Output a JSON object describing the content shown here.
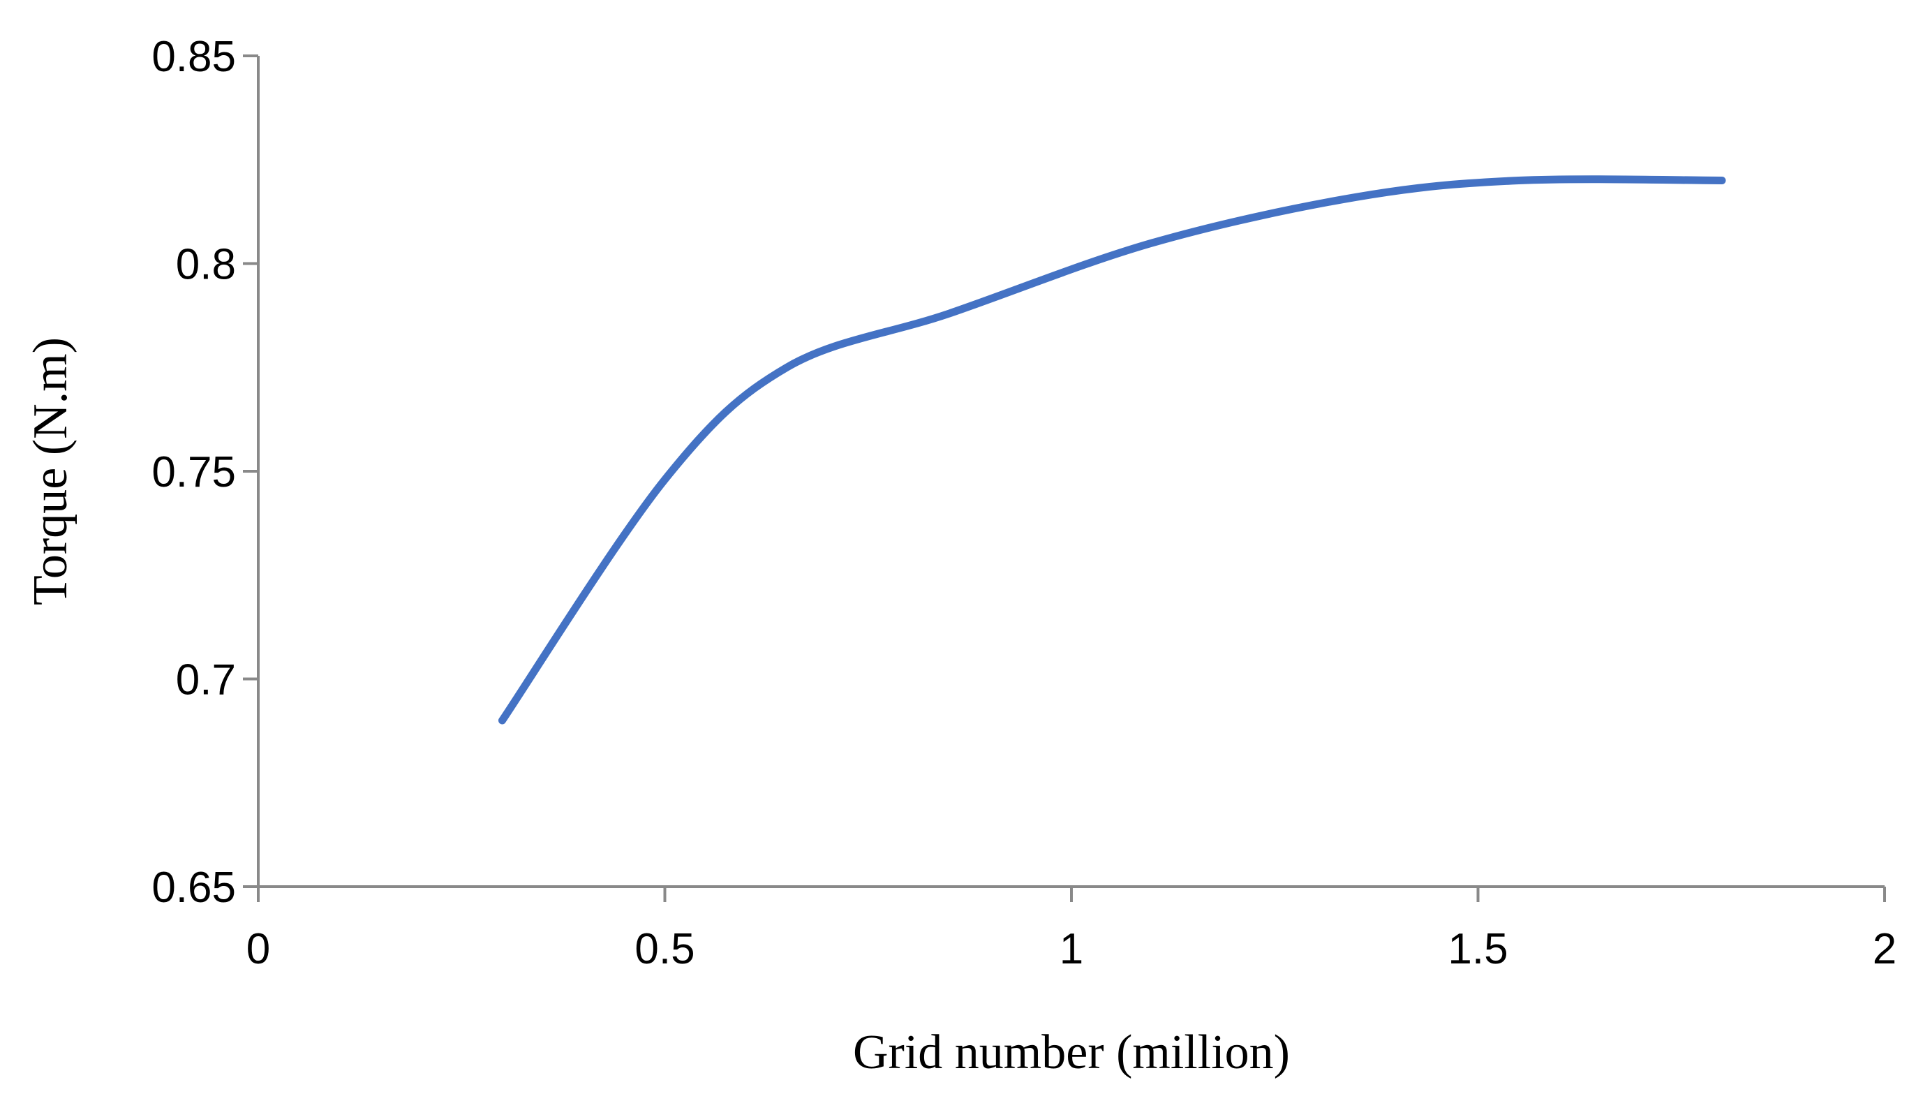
{
  "chart_data": {
    "type": "line",
    "title": "",
    "xlabel": "Grid number (million)",
    "ylabel": "Torque (N.m)",
    "xlim": [
      0,
      2
    ],
    "ylim": [
      0.65,
      0.85
    ],
    "xticks": [
      0,
      0.5,
      1,
      1.5,
      2
    ],
    "xtick_labels": [
      "0",
      "0.5",
      "1",
      "1.5",
      "2"
    ],
    "yticks": [
      0.65,
      0.7,
      0.75,
      0.8,
      0.85
    ],
    "ytick_labels": [
      "0.65",
      "0.7",
      "0.75",
      "0.8",
      "0.85"
    ],
    "grid": false,
    "legend": "none",
    "smooth": true,
    "series": [
      {
        "color": "#4472C4",
        "x": [
          0.3,
          0.5,
          0.65,
          0.85,
          1.1,
          1.35,
          1.55,
          1.8
        ],
        "y": [
          0.69,
          0.748,
          0.775,
          0.788,
          0.805,
          0.816,
          0.82,
          0.82
        ]
      }
    ]
  }
}
